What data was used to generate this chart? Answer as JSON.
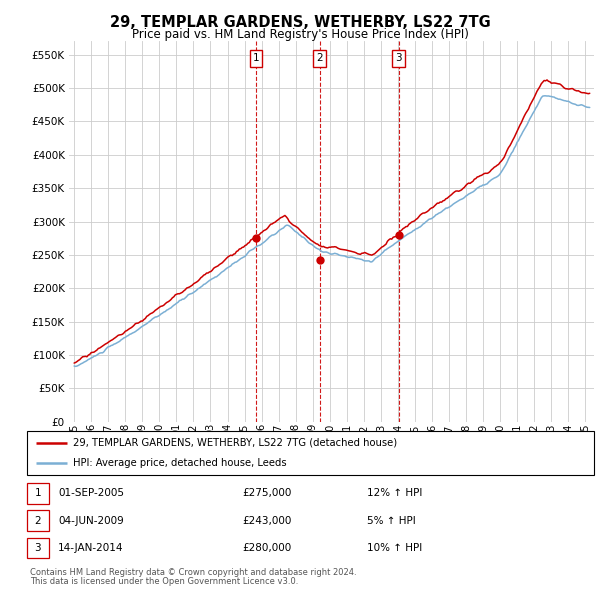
{
  "title": "29, TEMPLAR GARDENS, WETHERBY, LS22 7TG",
  "subtitle": "Price paid vs. HM Land Registry's House Price Index (HPI)",
  "legend_line1": "29, TEMPLAR GARDENS, WETHERBY, LS22 7TG (detached house)",
  "legend_line2": "HPI: Average price, detached house, Leeds",
  "transactions": [
    {
      "num": 1,
      "date_label": "01-SEP-2005",
      "price": 275000,
      "hpi_pct": "12%",
      "x_year": 2005.67
    },
    {
      "num": 2,
      "date_label": "04-JUN-2009",
      "price": 243000,
      "hpi_pct": "5%",
      "x_year": 2009.42
    },
    {
      "num": 3,
      "date_label": "14-JAN-2014",
      "price": 280000,
      "hpi_pct": "10%",
      "x_year": 2014.04
    }
  ],
  "footer1": "Contains HM Land Registry data © Crown copyright and database right 2024.",
  "footer2": "This data is licensed under the Open Government Licence v3.0.",
  "ylim": [
    0,
    570000
  ],
  "yticks": [
    0,
    50000,
    100000,
    150000,
    200000,
    250000,
    300000,
    350000,
    400000,
    450000,
    500000,
    550000
  ],
  "xlim_start": 1994.7,
  "xlim_end": 2025.5,
  "hpi_color": "#7BAFD4",
  "price_color": "#CC0000",
  "bg_color": "#FFFFFF",
  "grid_color": "#CCCCCC"
}
